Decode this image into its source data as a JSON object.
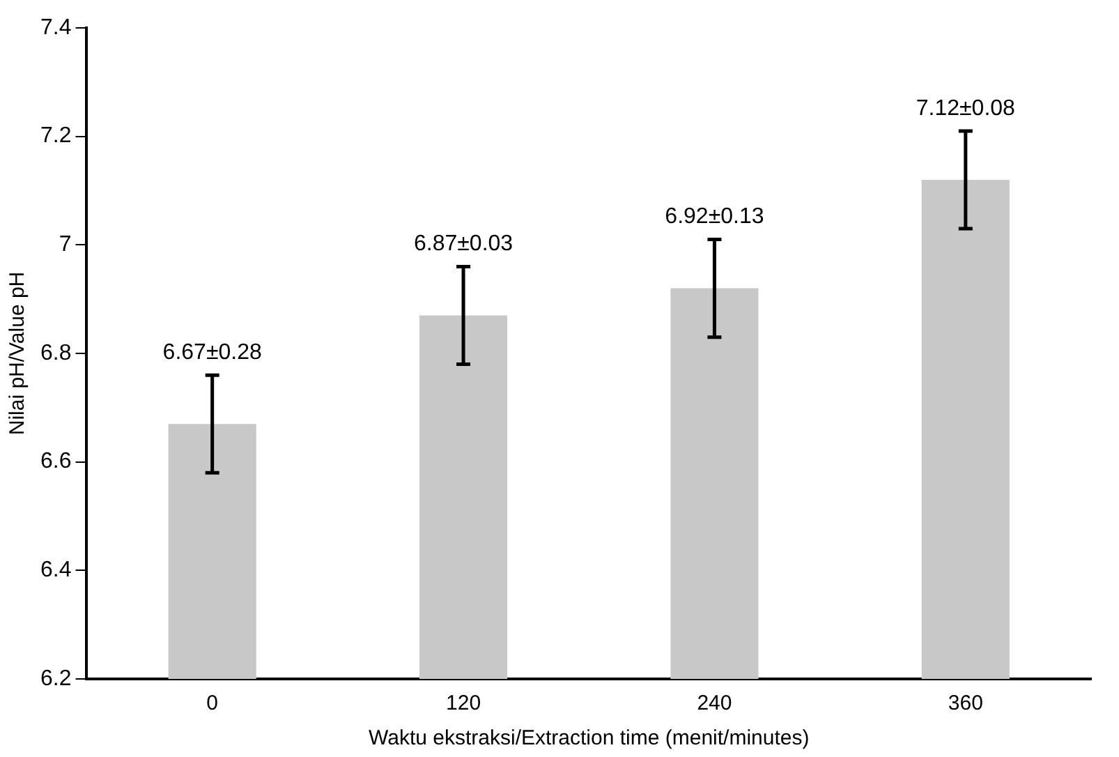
{
  "chart_data": {
    "type": "bar",
    "xlabel": "Waktu ekstraksi/Extraction time (menit/minutes)",
    "ylabel": "Nilai pH/Value pH",
    "categories": [
      "0",
      "120",
      "240",
      "360"
    ],
    "values": [
      6.67,
      6.87,
      6.92,
      7.12
    ],
    "errors": [
      0.09,
      0.09,
      0.09,
      0.09
    ],
    "value_labels": [
      "6.67±0.28",
      "6.87±0.03",
      "6.92±0.13",
      "7.12±0.08"
    ],
    "color": "#c8c8c8",
    "ylim": [
      6.2,
      7.4
    ],
    "yticks": [
      6.2,
      6.4,
      6.6,
      6.8,
      7,
      7.2,
      7.4
    ],
    "grid": false,
    "legend": false
  }
}
